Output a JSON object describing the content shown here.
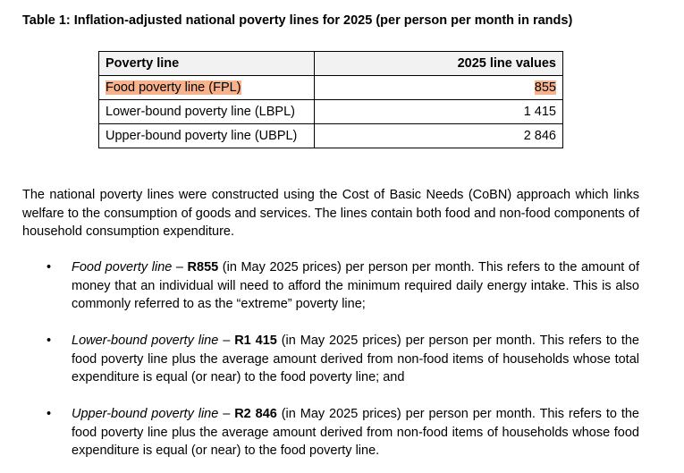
{
  "caption": "Table 1: Inflation-adjusted national poverty lines for 2025 (per person per month in rands)",
  "table": {
    "headers": [
      "Poverty line",
      "2025 line values"
    ],
    "rows": [
      {
        "name": "Food poverty line (FPL)",
        "value": "855",
        "highlighted": true
      },
      {
        "name": "Lower-bound poverty line (LBPL)",
        "value": "1 415",
        "highlighted": false
      },
      {
        "name": "Upper-bound poverty line (UBPL)",
        "value": "2 846",
        "highlighted": false
      }
    ],
    "highlight_color": "#f7b38d",
    "header_bg": "#f2f2f2"
  },
  "intro": "The national poverty lines were constructed using the Cost of Basic Needs (CoBN) approach which links welfare to the consumption of goods and services.  The lines contain both food and non-food components of household consumption expenditure.",
  "bullets": [
    {
      "mark": "•",
      "term": "Food poverty line",
      "dash": " – ",
      "amount": "R855",
      "rest": " (in May 2025 prices) per person per month.  This refers to the amount of money that an individual will need to afford the minimum required daily energy intake.  This is also commonly referred to as the “extreme” poverty line;"
    },
    {
      "mark": "•",
      "term": "Lower-bound poverty line",
      "dash": " – ",
      "amount": "R1 415",
      "rest": " (in May 2025 prices) per person per month.  This refers to the food poverty line plus the average amount derived from non-food items of households whose total expenditure is equal (or near) to the food poverty line; and"
    },
    {
      "mark": "•",
      "term": "Upper-bound poverty line",
      "dash": " – ",
      "amount": "R2 846",
      "rest": " (in May 2025 prices) per person per month.  This refers to the food poverty line plus the average amount derived from non-food items of households whose food expenditure is equal (or near) to the food poverty line."
    }
  ]
}
